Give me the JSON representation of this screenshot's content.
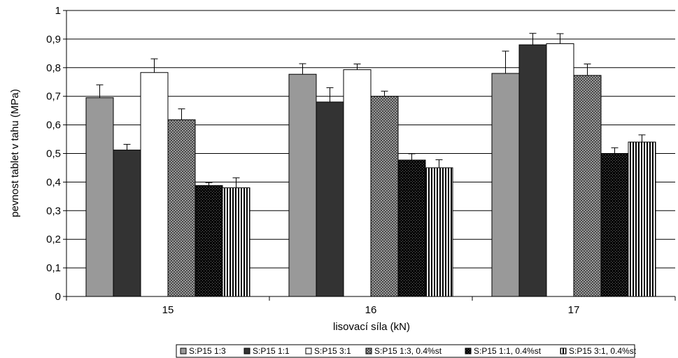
{
  "chart_data": {
    "type": "bar",
    "xlabel": "lisovací síla (kN)",
    "ylabel": "pevnost tablet v tahu (MPa)",
    "ylim": [
      0,
      1
    ],
    "yticks": [
      "0",
      "0,1",
      "0,2",
      "0,3",
      "0,4",
      "0,5",
      "0,6",
      "0,7",
      "0,8",
      "0,9",
      "1"
    ],
    "categories": [
      "15",
      "16",
      "17"
    ],
    "grid": true,
    "legend_position": "bottom",
    "series": [
      {
        "name": "S:P15 1:3",
        "values": [
          0.695,
          0.777,
          0.78
        ],
        "errors": [
          0.045,
          0.037,
          0.078
        ],
        "color": "#999999",
        "pattern": "solid-gray"
      },
      {
        "name": "S:P15 1:1",
        "values": [
          0.512,
          0.68,
          0.88
        ],
        "errors": [
          0.02,
          0.05,
          0.04
        ],
        "color": "#333333",
        "pattern": "solid-dark"
      },
      {
        "name": "S:P15 3:1",
        "values": [
          0.783,
          0.793,
          0.884
        ],
        "errors": [
          0.048,
          0.02,
          0.035
        ],
        "color": "#ffffff",
        "pattern": "solid-white"
      },
      {
        "name": "S:P15 1:3, 0.4%st",
        "values": [
          0.618,
          0.7,
          0.773
        ],
        "errors": [
          0.038,
          0.018,
          0.04
        ],
        "color": "#777777",
        "pattern": "fine-dot-gray"
      },
      {
        "name": "S:P15 1:1, 0.4%st",
        "values": [
          0.388,
          0.477,
          0.5
        ],
        "errors": [
          0.01,
          0.022,
          0.02
        ],
        "color": "#111111",
        "pattern": "fine-dot-black"
      },
      {
        "name": "S:P15 3:1, 0.4%st",
        "values": [
          0.38,
          0.45,
          0.54
        ],
        "errors": [
          0.035,
          0.028,
          0.025
        ],
        "color": "#555555",
        "pattern": "vertical-stripes"
      }
    ]
  }
}
